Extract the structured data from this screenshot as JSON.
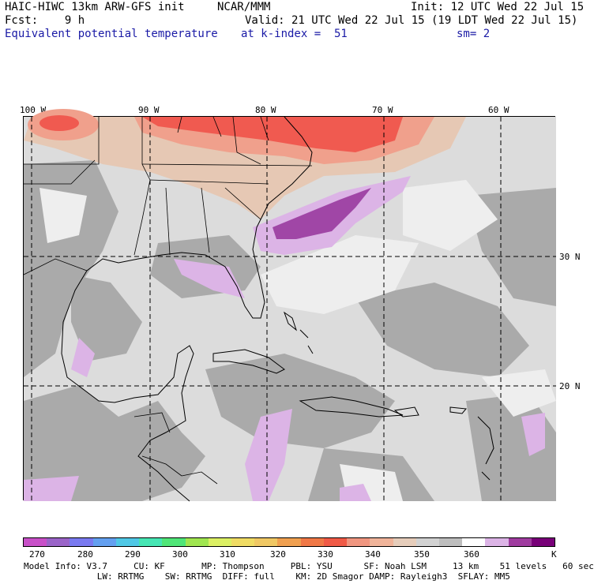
{
  "header": {
    "left_line1": "HAIC-HIWC 13km ARW-GFS init",
    "center_line1": "NCAR/MMM",
    "init": "Init: 12 UTC Wed 22 Jul 15",
    "fcst": "Fcst:    9 h",
    "valid": "Valid: 21 UTC Wed 22 Jul 15 (19 LDT Wed 22 Jul 15)",
    "field": "Equivalent potential temperature",
    "level": "at k-index =  51",
    "smooth": "sm= 2"
  },
  "map": {
    "lon_labels": [
      "100 W",
      "90 W",
      "80 W",
      "70 W",
      "60 W"
    ],
    "lat_labels": [
      "30 N",
      "20 N"
    ],
    "colors": {
      "ocean_base": "#dcdcdc",
      "land_gray": "#aaaaaa",
      "light_purple": "#dcb4e6",
      "dark_purple": "#a046a6",
      "red": "#f05a50",
      "salmon": "#f0a08c",
      "tan": "#e6c8b4",
      "near_white": "#eeeeee"
    }
  },
  "colorbar": {
    "colors": [
      "#c850c8",
      "#9a64c8",
      "#7a7af0",
      "#64a0f0",
      "#50c8e6",
      "#46e6b4",
      "#50e678",
      "#a0e650",
      "#dcf064",
      "#f0dc64",
      "#f0c864",
      "#f0a050",
      "#f07846",
      "#f05a46",
      "#f09680",
      "#f0b49a",
      "#e6cdbb",
      "#d2d2d2",
      "#bebebe",
      "#ffffff",
      "#dcb4e6",
      "#a03ca0",
      "#780078"
    ],
    "labels": [
      "270",
      "280",
      "290",
      "300",
      "310",
      "320",
      "330",
      "340",
      "350",
      "360",
      "K"
    ]
  },
  "footer": {
    "line1": "Model Info: V3.7     CU: KF       MP: Thompson     PBL: YSU      SF: Noah LSM     13 km    51 levels   60 sec",
    "line2": "              LW: RRTMG    SW: RRTMG  DIFF: full    KM: 2D Smagor DAMP: Rayleigh3  SFLAY: MM5"
  }
}
